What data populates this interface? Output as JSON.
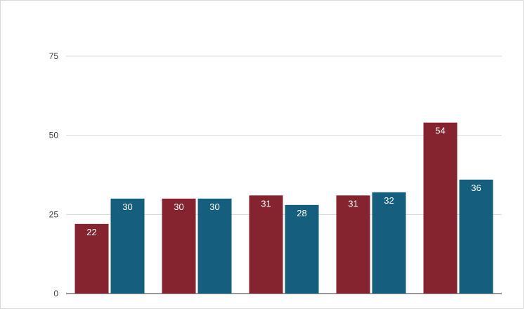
{
  "chart_data": {
    "type": "bar",
    "title": "",
    "xlabel": "",
    "ylabel": "",
    "categories": [
      "",
      "",
      "",
      "",
      ""
    ],
    "series": [
      {
        "color": "#85232f",
        "values": [
          22,
          30,
          31,
          31,
          54
        ]
      },
      {
        "color": "#165e7d",
        "values": [
          30,
          30,
          28,
          32,
          36
        ]
      }
    ],
    "ylim": [
      0,
      75
    ],
    "yticks": [
      "0",
      "25",
      "50",
      "75"
    ],
    "ytick_values": [
      0,
      25,
      50,
      75
    ],
    "grid": true,
    "legend": "none",
    "data_labels": true
  }
}
